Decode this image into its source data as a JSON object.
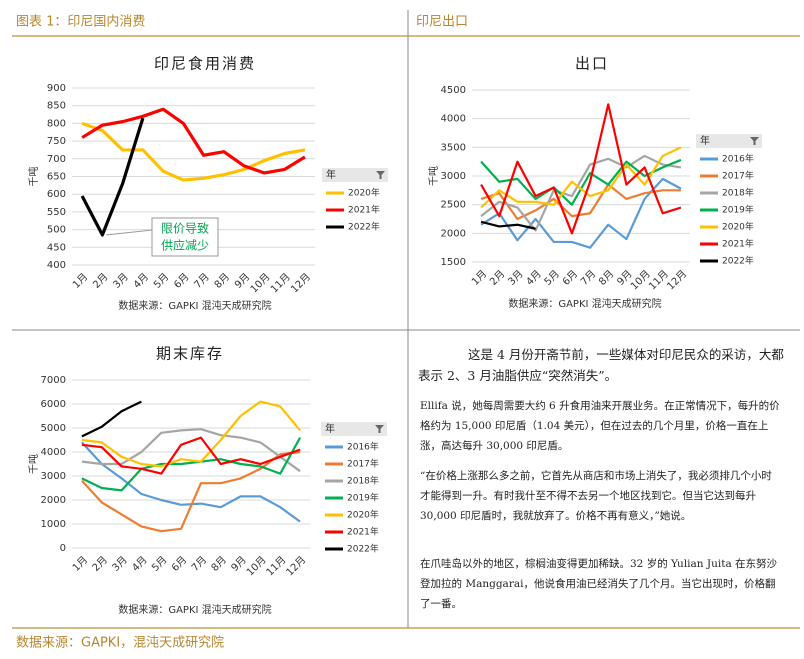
{
  "header": {
    "left": "图表 1：印尼国内消费",
    "right": "印尼出口"
  },
  "footer": "数据来源：GAPKI，混沌天成研究院",
  "chart_data": [
    {
      "type": "line",
      "title": "印尼食用消费",
      "ylabel": "千吨",
      "legend_title": "年",
      "source": "数据来源：GAPKI 混沌天成研究院",
      "categories": [
        "1月",
        "2月",
        "3月",
        "4月",
        "5月",
        "6月",
        "7月",
        "8月",
        "9月",
        "10月",
        "11月",
        "12月"
      ],
      "ylim": [
        400,
        900
      ],
      "yticks": [
        400,
        450,
        500,
        550,
        600,
        650,
        700,
        750,
        800,
        850,
        900
      ],
      "grid": true,
      "annotation": {
        "lines": [
          "限价导致",
          "供应减少"
        ],
        "color": "#00a651"
      },
      "series": [
        {
          "name": "2020年",
          "color": "#ffc000",
          "values": [
            800,
            780,
            725,
            725,
            665,
            640,
            645,
            655,
            670,
            695,
            715,
            725
          ]
        },
        {
          "name": "2021年",
          "color": "#ff0000",
          "values": [
            760,
            795,
            805,
            820,
            840,
            800,
            710,
            720,
            680,
            660,
            670,
            705
          ]
        },
        {
          "name": "2022年",
          "color": "#000000",
          "values": [
            595,
            485,
            630,
            815,
            null,
            null,
            null,
            null,
            null,
            null,
            null,
            null
          ]
        }
      ]
    },
    {
      "type": "line",
      "title": "出口",
      "ylabel": "千吨",
      "legend_title": "年",
      "source": "数据来源：GAPKI 混沌天成研究院",
      "categories": [
        "1月",
        "2月",
        "3月",
        "4月",
        "5月",
        "6月",
        "7月",
        "8月",
        "9月",
        "10月",
        "11月",
        "12月"
      ],
      "ylim": [
        1500,
        4500
      ],
      "yticks": [
        1500,
        2000,
        2500,
        3000,
        3500,
        4000,
        4500
      ],
      "grid": true,
      "series": [
        {
          "name": "2016年",
          "color": "#5b9bd5",
          "values": [
            2150,
            2350,
            1880,
            2250,
            1850,
            1850,
            1750,
            2150,
            1900,
            2600,
            2950,
            2780
          ]
        },
        {
          "name": "2017年",
          "color": "#ed7d31",
          "values": [
            2600,
            2700,
            2250,
            2400,
            2600,
            2300,
            2350,
            2850,
            2600,
            2700,
            2750,
            2750
          ]
        },
        {
          "name": "2018年",
          "color": "#a5a5a5",
          "values": [
            2300,
            2550,
            2450,
            2050,
            2750,
            2650,
            3200,
            3300,
            3150,
            3350,
            3200,
            3150
          ]
        },
        {
          "name": "2019年",
          "color": "#00b050",
          "values": [
            3250,
            2900,
            2950,
            2600,
            2800,
            2500,
            3050,
            2850,
            3250,
            3000,
            3150,
            3280
          ]
        },
        {
          "name": "2020年",
          "color": "#ffc000",
          "values": [
            2450,
            2750,
            2550,
            2550,
            2500,
            2900,
            2650,
            2750,
            3200,
            2850,
            3350,
            3500
          ]
        },
        {
          "name": "2021年",
          "color": "#ff0000",
          "values": [
            2850,
            2300,
            3250,
            2650,
            2800,
            2000,
            2900,
            4250,
            2850,
            3150,
            2350,
            2450
          ]
        },
        {
          "name": "2022年",
          "color": "#000000",
          "values": [
            2200,
            2120,
            2150,
            2080,
            null,
            null,
            null,
            null,
            null,
            null,
            null,
            null
          ]
        }
      ]
    },
    {
      "type": "line",
      "title": "期末库存",
      "ylabel": "千吨",
      "legend_title": "年",
      "source": "数据来源：GAPKI 混沌天成研究院",
      "categories": [
        "1月",
        "2月",
        "3月",
        "4月",
        "5月",
        "6月",
        "7月",
        "8月",
        "9月",
        "10月",
        "11月",
        "12月"
      ],
      "ylim": [
        0,
        7000
      ],
      "yticks": [
        0,
        1000,
        2000,
        3000,
        4000,
        5000,
        6000,
        7000
      ],
      "grid": true,
      "series": [
        {
          "name": "2016年",
          "color": "#5b9bd5",
          "values": [
            4400,
            3500,
            2900,
            2250,
            2000,
            1800,
            1850,
            1700,
            2150,
            2150,
            1700,
            1100
          ]
        },
        {
          "name": "2017年",
          "color": "#ed7d31",
          "values": [
            2800,
            1900,
            1400,
            900,
            700,
            800,
            2700,
            2700,
            2900,
            3300,
            3900,
            4000
          ]
        },
        {
          "name": "2018年",
          "color": "#a5a5a5",
          "values": [
            3600,
            3500,
            3500,
            4000,
            4800,
            4900,
            4950,
            4700,
            4600,
            4400,
            3800,
            3200
          ]
        },
        {
          "name": "2019年",
          "color": "#00b050",
          "values": [
            2900,
            2500,
            2400,
            3300,
            3500,
            3500,
            3600,
            3700,
            3500,
            3400,
            3100,
            4600
          ]
        },
        {
          "name": "2020年",
          "color": "#ffc000",
          "values": [
            4500,
            4400,
            3800,
            3500,
            3400,
            3700,
            3600,
            4500,
            5500,
            6100,
            5900,
            4900
          ]
        },
        {
          "name": "2021年",
          "color": "#ff0000",
          "values": [
            4300,
            4200,
            3400,
            3300,
            3100,
            4300,
            4600,
            3500,
            3700,
            3500,
            3800,
            4100
          ]
        },
        {
          "name": "2022年",
          "color": "#000000",
          "values": [
            4650,
            5050,
            5700,
            6100,
            null,
            null,
            null,
            null,
            null,
            null,
            null,
            null
          ]
        }
      ]
    }
  ],
  "article": {
    "intro": "这是 4 月份开斋节前，一些媒体对印尼民众的采访，大都表示 2、3 月油脂供应“突然消失”。",
    "quotes": [
      "Ellifa 说，她每周需要大约 6 升食用油来开展业务。在正常情况下，每升的价格约为 15,000 印尼盾（1.04 美元），但在过去的几个月里，价格一直在上涨，高达每升 30,000 印尼盾。",
      "“在价格上涨那么多之前，它首先从商店和市场上消失了，我必须排几个小时才能得到一升。有时我什至不得不去另一个地区找到它。但当它达到每升 30,000 印尼盾时，我就放弃了。价格不再有意义，”她说。",
      "在爪哇岛以外的地区，棕榈油变得更加稀缺。32 岁的 Yulian Juita 在东努沙登加拉的 Manggarai，他说食用油已经消失了几个月。当它出现时，价格翻了一番。"
    ]
  }
}
